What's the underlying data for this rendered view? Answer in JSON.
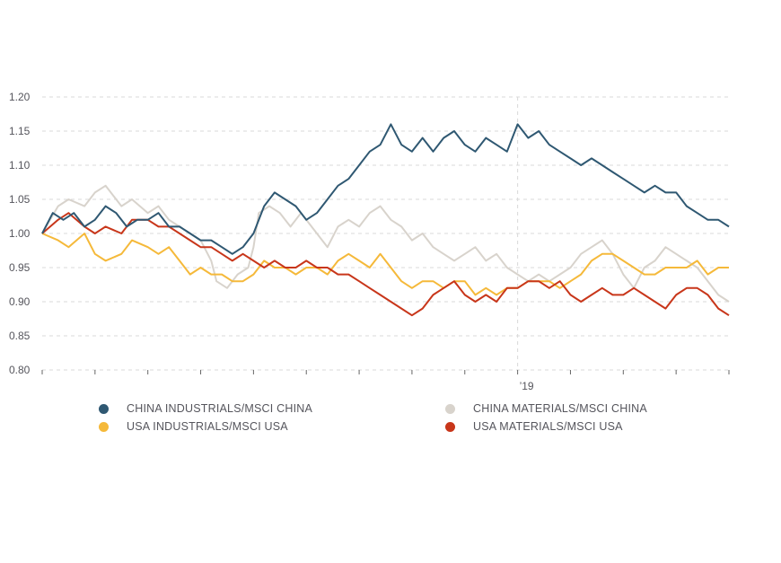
{
  "chart_data": {
    "type": "line",
    "title": "",
    "xlabel": "",
    "ylabel": "",
    "ylim": [
      0.8,
      1.2
    ],
    "y_ticks": [
      "1.20",
      "1.15",
      "1.10",
      "1.05",
      "1.00",
      "0.95",
      "0.90",
      "0.85",
      "0.80"
    ],
    "x_tick_labels": [
      {
        "pos": 9,
        "label": "’19"
      }
    ],
    "x_range": [
      0,
      13
    ],
    "grid": true,
    "legend_position": "bottom",
    "series": [
      {
        "name": "CHINA MATERIALS/MSCI CHINA",
        "color": "#d8d3cc",
        "x": [
          0,
          0.3,
          0.5,
          0.8,
          1.0,
          1.2,
          1.5,
          1.7,
          2.0,
          2.2,
          2.4,
          2.6,
          2.8,
          3.0,
          3.2,
          3.3,
          3.5,
          3.7,
          3.9,
          4.0,
          4.1,
          4.3,
          4.5,
          4.7,
          4.9,
          5.0,
          5.2,
          5.4,
          5.6,
          5.8,
          6.0,
          6.2,
          6.4,
          6.6,
          6.8,
          7.0,
          7.2,
          7.4,
          7.6,
          7.8,
          8.0,
          8.2,
          8.4,
          8.6,
          8.8,
          9.0,
          9.2,
          9.4,
          9.6,
          9.8,
          10.0,
          10.2,
          10.4,
          10.6,
          10.8,
          11.0,
          11.2,
          11.4,
          11.6,
          11.8,
          12.0,
          12.2,
          12.4,
          12.6,
          12.8,
          13.0
        ],
        "values": [
          1.0,
          1.04,
          1.05,
          1.04,
          1.06,
          1.07,
          1.04,
          1.05,
          1.03,
          1.04,
          1.02,
          1.01,
          1.0,
          0.99,
          0.96,
          0.93,
          0.92,
          0.94,
          0.95,
          0.98,
          1.03,
          1.04,
          1.03,
          1.01,
          1.03,
          1.02,
          1.0,
          0.98,
          1.01,
          1.02,
          1.01,
          1.03,
          1.04,
          1.02,
          1.01,
          0.99,
          1.0,
          0.98,
          0.97,
          0.96,
          0.97,
          0.98,
          0.96,
          0.97,
          0.95,
          0.94,
          0.93,
          0.94,
          0.93,
          0.94,
          0.95,
          0.97,
          0.98,
          0.99,
          0.97,
          0.94,
          0.92,
          0.95,
          0.96,
          0.98,
          0.97,
          0.96,
          0.95,
          0.93,
          0.91,
          0.9
        ]
      },
      {
        "name": "USA INDUSTRIALS/MSCI USA",
        "color": "#f5b93a",
        "x": [
          0,
          0.3,
          0.5,
          0.8,
          1.0,
          1.2,
          1.5,
          1.7,
          2.0,
          2.2,
          2.4,
          2.6,
          2.8,
          3.0,
          3.2,
          3.4,
          3.6,
          3.8,
          4.0,
          4.2,
          4.4,
          4.6,
          4.8,
          5.0,
          5.2,
          5.4,
          5.6,
          5.8,
          6.0,
          6.2,
          6.4,
          6.6,
          6.8,
          7.0,
          7.2,
          7.4,
          7.6,
          7.8,
          8.0,
          8.2,
          8.4,
          8.6,
          8.8,
          9.0,
          9.2,
          9.4,
          9.6,
          9.8,
          10.0,
          10.2,
          10.4,
          10.6,
          10.8,
          11.0,
          11.2,
          11.4,
          11.6,
          11.8,
          12.0,
          12.2,
          12.4,
          12.6,
          12.8,
          13.0
        ],
        "values": [
          1.0,
          0.99,
          0.98,
          1.0,
          0.97,
          0.96,
          0.97,
          0.99,
          0.98,
          0.97,
          0.98,
          0.96,
          0.94,
          0.95,
          0.94,
          0.94,
          0.93,
          0.93,
          0.94,
          0.96,
          0.95,
          0.95,
          0.94,
          0.95,
          0.95,
          0.94,
          0.96,
          0.97,
          0.96,
          0.95,
          0.97,
          0.95,
          0.93,
          0.92,
          0.93,
          0.93,
          0.92,
          0.93,
          0.93,
          0.91,
          0.92,
          0.91,
          0.92,
          0.92,
          0.93,
          0.93,
          0.93,
          0.92,
          0.93,
          0.94,
          0.96,
          0.97,
          0.97,
          0.96,
          0.95,
          0.94,
          0.94,
          0.95,
          0.95,
          0.95,
          0.96,
          0.94,
          0.95,
          0.95
        ]
      },
      {
        "name": "USA MATERIALS/MSCI USA",
        "color": "#c8361a",
        "x": [
          0,
          0.3,
          0.5,
          0.8,
          1.0,
          1.2,
          1.5,
          1.7,
          2.0,
          2.2,
          2.4,
          2.6,
          2.8,
          3.0,
          3.2,
          3.4,
          3.6,
          3.8,
          4.0,
          4.2,
          4.4,
          4.6,
          4.8,
          5.0,
          5.2,
          5.4,
          5.6,
          5.8,
          6.0,
          6.2,
          6.4,
          6.6,
          6.8,
          7.0,
          7.2,
          7.4,
          7.6,
          7.8,
          8.0,
          8.2,
          8.4,
          8.6,
          8.8,
          9.0,
          9.2,
          9.4,
          9.6,
          9.8,
          10.0,
          10.2,
          10.4,
          10.6,
          10.8,
          11.0,
          11.2,
          11.4,
          11.6,
          11.8,
          12.0,
          12.2,
          12.4,
          12.6,
          12.8,
          13.0
        ],
        "values": [
          1.0,
          1.02,
          1.03,
          1.01,
          1.0,
          1.01,
          1.0,
          1.02,
          1.02,
          1.01,
          1.01,
          1.0,
          0.99,
          0.98,
          0.98,
          0.97,
          0.96,
          0.97,
          0.96,
          0.95,
          0.96,
          0.95,
          0.95,
          0.96,
          0.95,
          0.95,
          0.94,
          0.94,
          0.93,
          0.92,
          0.91,
          0.9,
          0.89,
          0.88,
          0.89,
          0.91,
          0.92,
          0.93,
          0.91,
          0.9,
          0.91,
          0.9,
          0.92,
          0.92,
          0.93,
          0.93,
          0.92,
          0.93,
          0.91,
          0.9,
          0.91,
          0.92,
          0.91,
          0.91,
          0.92,
          0.91,
          0.9,
          0.89,
          0.91,
          0.92,
          0.92,
          0.91,
          0.89,
          0.88
        ]
      },
      {
        "name": "CHINA INDUSTRIALS/MSCI CHINA",
        "color": "#2f5872",
        "x": [
          0,
          0.2,
          0.4,
          0.6,
          0.8,
          1.0,
          1.2,
          1.4,
          1.6,
          1.8,
          2.0,
          2.2,
          2.4,
          2.6,
          2.8,
          3.0,
          3.2,
          3.4,
          3.6,
          3.8,
          4.0,
          4.2,
          4.4,
          4.6,
          4.8,
          5.0,
          5.2,
          5.4,
          5.6,
          5.8,
          6.0,
          6.2,
          6.4,
          6.6,
          6.8,
          7.0,
          7.2,
          7.4,
          7.6,
          7.8,
          8.0,
          8.2,
          8.4,
          8.6,
          8.8,
          9.0,
          9.2,
          9.4,
          9.6,
          9.8,
          10.0,
          10.2,
          10.4,
          10.6,
          10.8,
          11.0,
          11.2,
          11.4,
          11.6,
          11.8,
          12.0,
          12.2,
          12.4,
          12.6,
          12.8,
          13.0
        ],
        "values": [
          1.0,
          1.03,
          1.02,
          1.03,
          1.01,
          1.02,
          1.04,
          1.03,
          1.01,
          1.02,
          1.02,
          1.03,
          1.01,
          1.01,
          1.0,
          0.99,
          0.99,
          0.98,
          0.97,
          0.98,
          1.0,
          1.04,
          1.06,
          1.05,
          1.04,
          1.02,
          1.03,
          1.05,
          1.07,
          1.08,
          1.1,
          1.12,
          1.13,
          1.16,
          1.13,
          1.12,
          1.14,
          1.12,
          1.14,
          1.15,
          1.13,
          1.12,
          1.14,
          1.13,
          1.12,
          1.16,
          1.14,
          1.15,
          1.13,
          1.12,
          1.11,
          1.1,
          1.11,
          1.1,
          1.09,
          1.08,
          1.07,
          1.06,
          1.07,
          1.06,
          1.06,
          1.04,
          1.03,
          1.02,
          1.02,
          1.01
        ]
      }
    ]
  },
  "legend": [
    {
      "label": "CHINA INDUSTRIALS/MSCI CHINA",
      "color": "#2f5872"
    },
    {
      "label": "CHINA MATERIALS/MSCI CHINA",
      "color": "#d8d3cc"
    },
    {
      "label": "USA INDUSTRIALS/MSCI USA",
      "color": "#f5b93a"
    },
    {
      "label": "USA MATERIALS/MSCI USA",
      "color": "#c8361a"
    }
  ]
}
